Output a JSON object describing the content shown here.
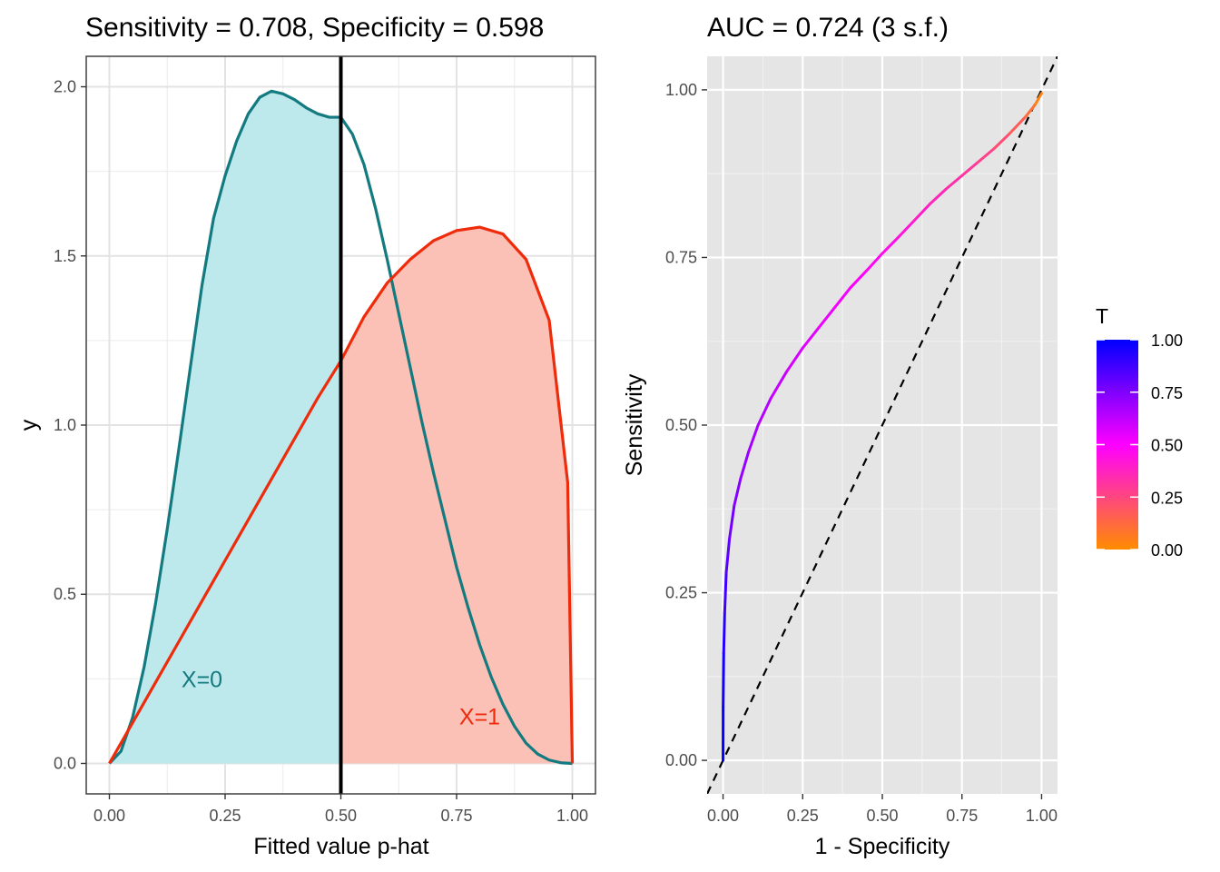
{
  "chart_data": [
    {
      "type": "area",
      "title": "Sensitivity = 0.708, Specificity = 0.598",
      "xlabel": "Fitted value p-hat",
      "ylabel": "y",
      "xlim": [
        -0.05,
        1.05
      ],
      "ylim": [
        -0.09,
        2.09
      ],
      "x_ticks": [
        "0.00",
        "0.25",
        "0.50",
        "0.75",
        "1.00"
      ],
      "y_ticks": [
        "0.0",
        "0.5",
        "1.0",
        "1.5",
        "2.0"
      ],
      "threshold": 0.5,
      "grid": true,
      "series": [
        {
          "name": "X=0",
          "color": "#137a7f",
          "fill": "#bde9ed",
          "annotation_position": [
            0.2,
            0.25
          ],
          "x": [
            0.0,
            0.025,
            0.05,
            0.075,
            0.1,
            0.125,
            0.15,
            0.175,
            0.2,
            0.225,
            0.25,
            0.275,
            0.3,
            0.325,
            0.35,
            0.375,
            0.4,
            0.425,
            0.45,
            0.475,
            0.5,
            0.525,
            0.55,
            0.575,
            0.6,
            0.625,
            0.65,
            0.675,
            0.7,
            0.725,
            0.75,
            0.775,
            0.8,
            0.825,
            0.85,
            0.875,
            0.9,
            0.925,
            0.95,
            0.975,
            1.0
          ],
          "y": [
            0.0,
            0.036,
            0.135,
            0.285,
            0.475,
            0.693,
            0.929,
            1.172,
            1.413,
            1.611,
            1.737,
            1.84,
            1.92,
            1.969,
            1.987,
            1.979,
            1.962,
            1.938,
            1.92,
            1.91,
            1.91,
            1.86,
            1.77,
            1.64,
            1.49,
            1.33,
            1.17,
            1.01,
            0.86,
            0.72,
            0.58,
            0.46,
            0.35,
            0.255,
            0.175,
            0.11,
            0.06,
            0.028,
            0.01,
            0.002,
            0.0
          ]
        },
        {
          "name": "X=1",
          "color": "#ee2b0b",
          "fill": "#fbc0b6",
          "annotation_position": [
            0.8,
            0.14
          ],
          "x": [
            0.0,
            0.05,
            0.1,
            0.15,
            0.2,
            0.25,
            0.3,
            0.35,
            0.4,
            0.45,
            0.5,
            0.55,
            0.6,
            0.65,
            0.7,
            0.75,
            0.8,
            0.85,
            0.9,
            0.95,
            0.99,
            1.0
          ],
          "y": [
            0.0,
            0.12,
            0.24,
            0.36,
            0.48,
            0.6,
            0.72,
            0.84,
            0.96,
            1.08,
            1.19,
            1.32,
            1.42,
            1.49,
            1.545,
            1.575,
            1.585,
            1.565,
            1.49,
            1.31,
            0.83,
            0.0
          ]
        }
      ]
    },
    {
      "type": "line",
      "title": "AUC = 0.724 (3 s.f.)",
      "xlabel": "1 - Specificity",
      "ylabel": "Sensitivity",
      "xlim": [
        -0.05,
        1.05
      ],
      "ylim": [
        -0.05,
        1.05
      ],
      "x_ticks": [
        "0.00",
        "0.25",
        "0.50",
        "0.75",
        "1.00"
      ],
      "y_ticks": [
        "0.00",
        "0.25",
        "0.50",
        "0.75",
        "1.00"
      ],
      "background": "#e5e5e5",
      "diagonal": true,
      "series": [
        {
          "name": "ROC",
          "x": [
            0.0,
            0.0003,
            0.002,
            0.005,
            0.01,
            0.02,
            0.035,
            0.055,
            0.08,
            0.11,
            0.15,
            0.2,
            0.25,
            0.3,
            0.35,
            0.4,
            0.45,
            0.5,
            0.55,
            0.6,
            0.65,
            0.7,
            0.75,
            0.8,
            0.85,
            0.9,
            0.95,
            0.98,
            1.0
          ],
          "y": [
            0.0,
            0.08,
            0.16,
            0.22,
            0.28,
            0.33,
            0.38,
            0.42,
            0.46,
            0.5,
            0.54,
            0.58,
            0.615,
            0.645,
            0.675,
            0.705,
            0.73,
            0.756,
            0.78,
            0.805,
            0.83,
            0.852,
            0.872,
            0.892,
            0.912,
            0.935,
            0.96,
            0.978,
            0.995
          ],
          "T": [
            1.0,
            0.98,
            0.95,
            0.9,
            0.85,
            0.8,
            0.75,
            0.72,
            0.69,
            0.66,
            0.63,
            0.6,
            0.57,
            0.55,
            0.53,
            0.51,
            0.49,
            0.47,
            0.44,
            0.41,
            0.38,
            0.35,
            0.32,
            0.29,
            0.25,
            0.2,
            0.14,
            0.07,
            0.0
          ]
        }
      ],
      "legend": {
        "title": "T",
        "labels": [
          "1.00",
          "0.75",
          "0.50",
          "0.25",
          "0.00"
        ],
        "colors": [
          "#0000ff",
          "#ff00ff",
          "#ff8c00"
        ],
        "placement": "right"
      }
    }
  ]
}
